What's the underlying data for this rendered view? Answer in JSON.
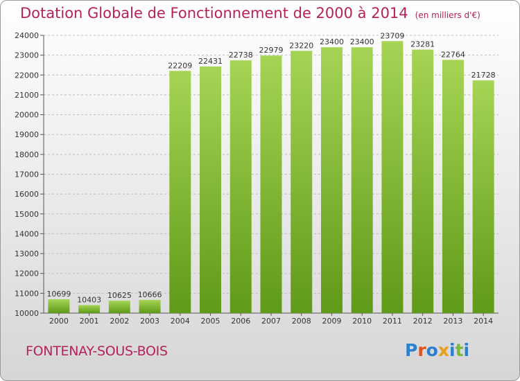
{
  "title": "Dotation Globale de Fonctionnement de 2000 à 2014",
  "unit": "(en milliers d'€)",
  "city": "FONTENAY-SOUS-BOIS",
  "logo": {
    "text": "Proxiti",
    "colors": [
      "#2a7fcf",
      "#e0521f",
      "#2a7fcf",
      "#e8a018",
      "#2a7fcf",
      "#7cb83a",
      "#2a7fcf"
    ]
  },
  "colors": {
    "title": "#b5215a",
    "bar_top": "#a6d454",
    "bar_bottom": "#5f9a18",
    "axis": "#555555",
    "grid": "#bdbdbd"
  },
  "chart_data": {
    "type": "bar",
    "categories": [
      "2000",
      "2001",
      "2002",
      "2003",
      "2004",
      "2005",
      "2006",
      "2007",
      "2008",
      "2009",
      "2010",
      "2011",
      "2012",
      "2013",
      "2014"
    ],
    "values": [
      10699,
      10403,
      10625,
      10666,
      22209,
      22431,
      22738,
      22979,
      23220,
      23400,
      23400,
      23709,
      23281,
      22764,
      21728
    ],
    "ylim": [
      10000,
      24000
    ],
    "yticks": [
      10000,
      11000,
      12000,
      13000,
      14000,
      15000,
      16000,
      17000,
      18000,
      19000,
      20000,
      21000,
      22000,
      23000,
      24000
    ],
    "grid": true,
    "title": "Dotation Globale de Fonctionnement de 2000 à 2014",
    "xlabel": "",
    "ylabel": ""
  }
}
